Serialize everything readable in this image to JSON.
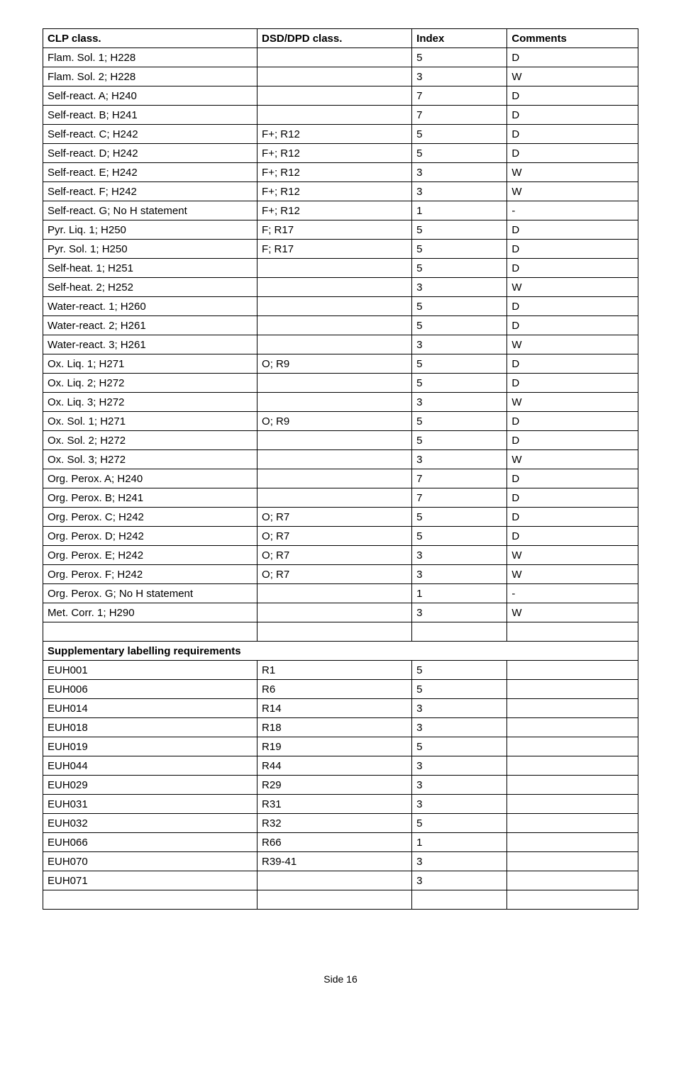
{
  "headers": [
    "CLP class.",
    "DSD/DPD class.",
    "Index",
    "Comments"
  ],
  "rows": [
    [
      "Flam. Sol. 1; H228",
      "",
      "5",
      "D"
    ],
    [
      "Flam. Sol. 2; H228",
      "",
      "3",
      "W"
    ],
    [
      "Self-react. A; H240",
      "",
      "7",
      "D"
    ],
    [
      "Self-react. B; H241",
      "",
      "7",
      "D"
    ],
    [
      "Self-react. C; H242",
      "F+; R12",
      "5",
      "D"
    ],
    [
      "Self-react. D; H242",
      "F+; R12",
      "5",
      "D"
    ],
    [
      "Self-react. E; H242",
      "F+; R12",
      "3",
      "W"
    ],
    [
      "Self-react. F; H242",
      "F+; R12",
      "3",
      "W"
    ],
    [
      "Self-react. G; No H statement",
      "F+; R12",
      "1",
      "-"
    ],
    [
      "Pyr. Liq. 1; H250",
      "F; R17",
      "5",
      "D"
    ],
    [
      "Pyr. Sol. 1; H250",
      "F; R17",
      "5",
      "D"
    ],
    [
      "Self-heat. 1; H251",
      "",
      "5",
      "D"
    ],
    [
      "Self-heat. 2; H252",
      "",
      "3",
      "W"
    ],
    [
      "Water-react. 1; H260",
      "",
      "5",
      "D"
    ],
    [
      "Water-react. 2; H261",
      "",
      "5",
      "D"
    ],
    [
      "Water-react. 3; H261",
      "",
      "3",
      "W"
    ],
    [
      "Ox. Liq. 1; H271",
      "O; R9",
      "5",
      "D"
    ],
    [
      "Ox. Liq. 2; H272",
      "",
      "5",
      "D"
    ],
    [
      "Ox. Liq. 3; H272",
      "",
      "3",
      "W"
    ],
    [
      "Ox. Sol. 1; H271",
      "O; R9",
      "5",
      "D"
    ],
    [
      "Ox. Sol. 2; H272",
      "",
      "5",
      "D"
    ],
    [
      "Ox. Sol. 3; H272",
      "",
      "3",
      "W"
    ],
    [
      "Org. Perox. A; H240",
      "",
      "7",
      "D"
    ],
    [
      "Org. Perox. B; H241",
      "",
      "7",
      "D"
    ],
    [
      "Org. Perox. C; H242",
      "O; R7",
      "5",
      "D"
    ],
    [
      "Org. Perox. D; H242",
      "O; R7",
      "5",
      "D"
    ],
    [
      "Org. Perox. E; H242",
      "O; R7",
      "3",
      "W"
    ],
    [
      "Org. Perox. F; H242",
      "O; R7",
      "3",
      "W"
    ],
    [
      "Org. Perox. G; No H statement",
      "",
      "1",
      "-"
    ],
    [
      "Met. Corr. 1; H290",
      "",
      "3",
      "W"
    ]
  ],
  "blankRow": [
    "",
    "",
    "",
    ""
  ],
  "sectionTitle": "Supplementary labelling requirements",
  "suppRows": [
    [
      "EUH001",
      "R1",
      "5",
      ""
    ],
    [
      "EUH006",
      "R6",
      "5",
      ""
    ],
    [
      "EUH014",
      "R14",
      "3",
      ""
    ],
    [
      "EUH018",
      "R18",
      "3",
      ""
    ],
    [
      "EUH019",
      "R19",
      "5",
      ""
    ],
    [
      "EUH044",
      "R44",
      "3",
      ""
    ],
    [
      "EUH029",
      "R29",
      "3",
      ""
    ],
    [
      "EUH031",
      "R31",
      "3",
      ""
    ],
    [
      "EUH032",
      "R32",
      "5",
      ""
    ],
    [
      "EUH066",
      "R66",
      "1",
      ""
    ],
    [
      "EUH070",
      "R39-41",
      "3",
      ""
    ],
    [
      "EUH071",
      "",
      "3",
      ""
    ]
  ],
  "footer": "Side 16"
}
